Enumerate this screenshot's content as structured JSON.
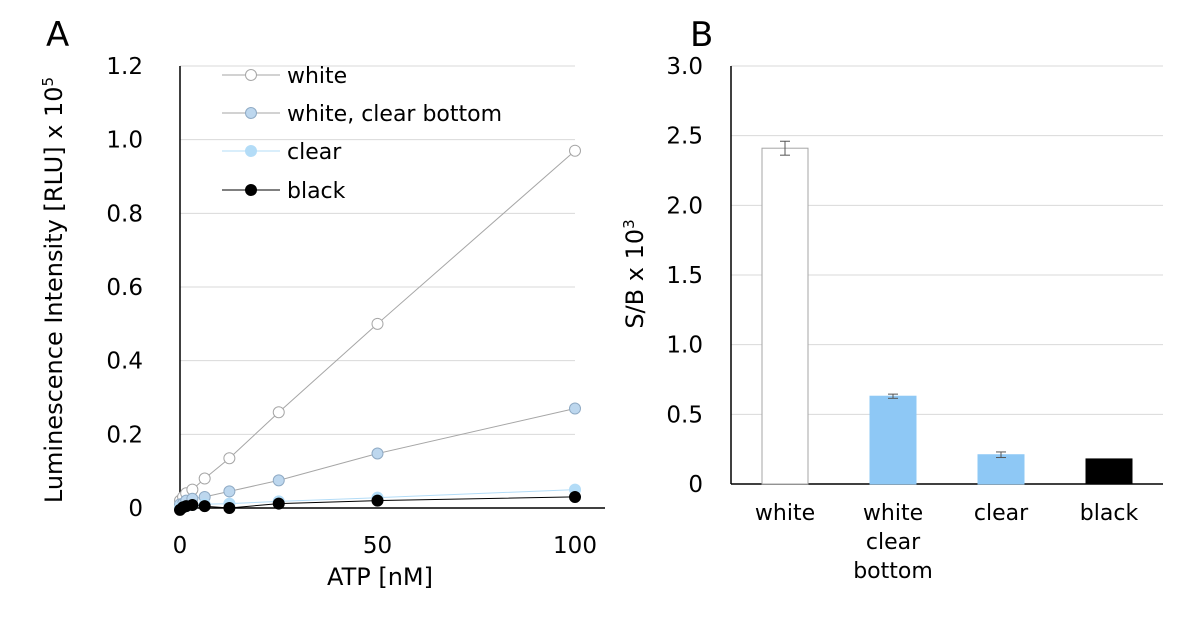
{
  "chart_data": [
    {
      "panel_label": "A",
      "type": "scatter",
      "xlabel": "ATP [nM]",
      "ylabel": "Luminescence Intensity [RLU] x 10",
      "ylabel_sup": "5",
      "xlim": [
        0,
        100
      ],
      "ylim": [
        0,
        1.2
      ],
      "xticks": [
        "0",
        "50",
        "100"
      ],
      "yticks": [
        "0",
        "0.2",
        "0.4",
        "0.6",
        "0.8",
        "1.0",
        "1.2"
      ],
      "grid": "horizontal",
      "legend_position": "top-left",
      "x": [
        0,
        0.78,
        1.56,
        3.13,
        6.25,
        12.5,
        25,
        50,
        100
      ],
      "series": [
        {
          "name": "white",
          "color": "#ffffff",
          "stroke": "#a6a6a6",
          "line": "#a6a6a6",
          "values": [
            0.02,
            0.03,
            0.04,
            0.05,
            0.08,
            0.135,
            0.26,
            0.5,
            0.97
          ]
        },
        {
          "name": "white, clear bottom",
          "color": "#bdd7ee",
          "stroke": "#8faac4",
          "line": "#a6a6a6",
          "values": [
            0.01,
            0.012,
            0.02,
            0.025,
            0.03,
            0.045,
            0.075,
            0.148,
            0.27
          ]
        },
        {
          "name": "clear",
          "color": "#b3dcf7",
          "stroke": "#b3dcf7",
          "line": "#b3dcf7",
          "values": [
            0.0,
            0.003,
            0.005,
            0.008,
            0.01,
            0.012,
            0.018,
            0.028,
            0.05
          ]
        },
        {
          "name": "black",
          "color": "#000000",
          "stroke": "#000000",
          "line": "#000000",
          "values": [
            -0.005,
            0.002,
            0.005,
            0.008,
            0.005,
            0.0,
            0.012,
            0.02,
            0.03
          ]
        }
      ]
    },
    {
      "panel_label": "B",
      "type": "bar",
      "ylabel": "S/B x 10",
      "ylabel_sup": "3",
      "ylim": [
        0,
        3.0
      ],
      "yticks": [
        "0",
        "0.5",
        "1.0",
        "1.5",
        "2.0",
        "2.5",
        "3.0"
      ],
      "grid": "horizontal",
      "categories": [
        [
          "white"
        ],
        [
          "white",
          "clear",
          "bottom"
        ],
        [
          "clear"
        ],
        [
          "black"
        ]
      ],
      "values": [
        2.41,
        0.63,
        0.21,
        0.18
      ],
      "errors": [
        0.05,
        0.015,
        0.02,
        0.0
      ],
      "fill": [
        "#ffffff",
        "#8ec8f5",
        "#8ec8f5",
        "#000000"
      ],
      "stroke": [
        "#a6a6a6",
        "#8ec8f5",
        "#8ec8f5",
        "#000000"
      ]
    }
  ]
}
